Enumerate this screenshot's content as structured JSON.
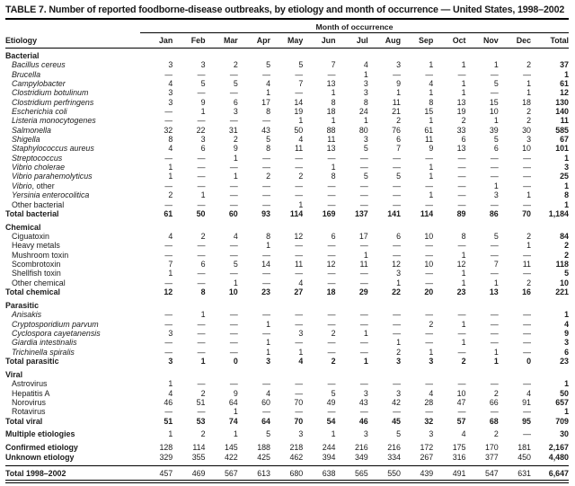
{
  "table": {
    "title": "TABLE 7. Number of reported foodborne-disease outbreaks, by etiology and month of occurrence — United States, 1998–2002",
    "spanner": "Month of occurrence",
    "label_header": "Etiology",
    "months": [
      "Jan",
      "Feb",
      "Mar",
      "Apr",
      "May",
      "Jun",
      "Jul",
      "Aug",
      "Sep",
      "Oct",
      "Nov",
      "Dec"
    ],
    "total_header": "Total",
    "rows": [
      {
        "type": "section",
        "label": "Bacterial"
      },
      {
        "type": "data",
        "label": "Bacillus cereus",
        "italic": true,
        "values": [
          "3",
          "3",
          "2",
          "5",
          "5",
          "7",
          "4",
          "3",
          "1",
          "1",
          "1",
          "2",
          "37"
        ]
      },
      {
        "type": "data",
        "label": "Brucella",
        "italic": true,
        "values": [
          "—",
          "—",
          "—",
          "—",
          "—",
          "—",
          "1",
          "—",
          "—",
          "—",
          "—",
          "—",
          "1"
        ]
      },
      {
        "type": "data",
        "label": "Campylobacter",
        "italic": true,
        "values": [
          "4",
          "5",
          "5",
          "4",
          "7",
          "13",
          "3",
          "9",
          "4",
          "1",
          "5",
          "1",
          "61"
        ]
      },
      {
        "type": "data",
        "label": "Clostridium botulinum",
        "italic": true,
        "values": [
          "3",
          "—",
          "—",
          "1",
          "—",
          "1",
          "3",
          "1",
          "1",
          "1",
          "—",
          "1",
          "12"
        ]
      },
      {
        "type": "data",
        "label": "Clostridium perfringens",
        "italic": true,
        "values": [
          "3",
          "9",
          "6",
          "17",
          "14",
          "8",
          "8",
          "11",
          "8",
          "13",
          "15",
          "18",
          "130"
        ]
      },
      {
        "type": "data",
        "label": "Escherichia coli",
        "italic": true,
        "values": [
          "—",
          "1",
          "3",
          "8",
          "19",
          "18",
          "24",
          "21",
          "15",
          "19",
          "10",
          "2",
          "140"
        ]
      },
      {
        "type": "data",
        "label": "Listeria monocytogenes",
        "italic": true,
        "values": [
          "—",
          "—",
          "—",
          "—",
          "1",
          "1",
          "1",
          "2",
          "1",
          "2",
          "1",
          "2",
          "11"
        ]
      },
      {
        "type": "data",
        "label": "Salmonella",
        "italic": true,
        "values": [
          "32",
          "22",
          "31",
          "43",
          "50",
          "88",
          "80",
          "76",
          "61",
          "33",
          "39",
          "30",
          "585"
        ]
      },
      {
        "type": "data",
        "label": "Shigella",
        "italic": true,
        "values": [
          "8",
          "3",
          "2",
          "5",
          "4",
          "11",
          "3",
          "6",
          "11",
          "6",
          "5",
          "3",
          "67"
        ]
      },
      {
        "type": "data",
        "label": "Staphylococcus aureus",
        "italic": true,
        "values": [
          "4",
          "6",
          "9",
          "8",
          "11",
          "13",
          "5",
          "7",
          "9",
          "13",
          "6",
          "10",
          "101"
        ]
      },
      {
        "type": "data",
        "label": "Streptococcus",
        "italic": true,
        "values": [
          "—",
          "—",
          "1",
          "—",
          "—",
          "—",
          "—",
          "—",
          "—",
          "—",
          "—",
          "—",
          "1"
        ]
      },
      {
        "type": "data",
        "label": "Vibrio cholerae",
        "italic": true,
        "values": [
          "1",
          "—",
          "—",
          "—",
          "—",
          "1",
          "—",
          "—",
          "1",
          "—",
          "—",
          "—",
          "3"
        ]
      },
      {
        "type": "data",
        "label": "Vibrio parahemolyticus",
        "italic": true,
        "values": [
          "1",
          "—",
          "1",
          "2",
          "2",
          "8",
          "5",
          "5",
          "1",
          "—",
          "—",
          "—",
          "25"
        ]
      },
      {
        "type": "data",
        "label": "Vibrio, other",
        "italic_part": "Vibrio",
        "values": [
          "—",
          "—",
          "—",
          "—",
          "—",
          "—",
          "—",
          "—",
          "—",
          "—",
          "1",
          "—",
          "1"
        ]
      },
      {
        "type": "data",
        "label": "Yersinia enterocolitica",
        "italic": true,
        "values": [
          "2",
          "1",
          "—",
          "—",
          "—",
          "—",
          "—",
          "—",
          "1",
          "—",
          "3",
          "1",
          "8"
        ]
      },
      {
        "type": "data",
        "label": "Other bacterial",
        "values": [
          "—",
          "—",
          "—",
          "—",
          "1",
          "—",
          "—",
          "—",
          "—",
          "—",
          "—",
          "—",
          "1"
        ]
      },
      {
        "type": "total",
        "label": "Total bacterial",
        "values": [
          "61",
          "50",
          "60",
          "93",
          "114",
          "169",
          "137",
          "141",
          "114",
          "89",
          "86",
          "70",
          "1,184"
        ]
      },
      {
        "type": "spacer"
      },
      {
        "type": "section",
        "label": "Chemical"
      },
      {
        "type": "data",
        "label": "Ciguatoxin",
        "values": [
          "4",
          "2",
          "4",
          "8",
          "12",
          "6",
          "17",
          "6",
          "10",
          "8",
          "5",
          "2",
          "84"
        ]
      },
      {
        "type": "data",
        "label": "Heavy metals",
        "values": [
          "—",
          "—",
          "—",
          "1",
          "—",
          "—",
          "—",
          "—",
          "—",
          "—",
          "—",
          "1",
          "2"
        ]
      },
      {
        "type": "data",
        "label": "Mushroom toxin",
        "values": [
          "—",
          "—",
          "—",
          "—",
          "—",
          "—",
          "1",
          "—",
          "—",
          "1",
          "—",
          "—",
          "2"
        ]
      },
      {
        "type": "data",
        "label": "Scombrotoxin",
        "values": [
          "7",
          "6",
          "5",
          "14",
          "11",
          "12",
          "11",
          "12",
          "10",
          "12",
          "7",
          "11",
          "118"
        ]
      },
      {
        "type": "data",
        "label": "Shellfish toxin",
        "values": [
          "1",
          "—",
          "—",
          "—",
          "—",
          "—",
          "—",
          "3",
          "—",
          "1",
          "—",
          "—",
          "5"
        ]
      },
      {
        "type": "data",
        "label": "Other chemical",
        "values": [
          "—",
          "—",
          "1",
          "—",
          "4",
          "—",
          "—",
          "1",
          "—",
          "1",
          "1",
          "2",
          "10"
        ]
      },
      {
        "type": "total",
        "label": "Total chemical",
        "values": [
          "12",
          "8",
          "10",
          "23",
          "27",
          "18",
          "29",
          "22",
          "20",
          "23",
          "13",
          "16",
          "221"
        ]
      },
      {
        "type": "spacer"
      },
      {
        "type": "section",
        "label": "Parasitic"
      },
      {
        "type": "data",
        "label": "Anisakis",
        "italic": true,
        "values": [
          "—",
          "1",
          "—",
          "—",
          "—",
          "—",
          "—",
          "—",
          "—",
          "—",
          "—",
          "—",
          "1"
        ]
      },
      {
        "type": "data",
        "label": "Cryptosporidium parvum",
        "italic": true,
        "values": [
          "—",
          "—",
          "—",
          "1",
          "—",
          "—",
          "—",
          "—",
          "2",
          "1",
          "—",
          "—",
          "4"
        ]
      },
      {
        "type": "data",
        "label": "Cyclospora cayetanensis",
        "italic": true,
        "values": [
          "3",
          "—",
          "—",
          "—",
          "3",
          "2",
          "1",
          "—",
          "—",
          "—",
          "—",
          "—",
          "9"
        ]
      },
      {
        "type": "data",
        "label": "Giardia intestinalis",
        "italic": true,
        "values": [
          "—",
          "—",
          "—",
          "1",
          "—",
          "—",
          "—",
          "1",
          "—",
          "1",
          "—",
          "—",
          "3"
        ]
      },
      {
        "type": "data",
        "label": "Trichinella spiralis",
        "italic": true,
        "values": [
          "—",
          "—",
          "—",
          "1",
          "1",
          "—",
          "—",
          "2",
          "1",
          "—",
          "1",
          "—",
          "6"
        ]
      },
      {
        "type": "total",
        "label": "Total parasitic",
        "values": [
          "3",
          "1",
          "0",
          "3",
          "4",
          "2",
          "1",
          "3",
          "3",
          "2",
          "1",
          "0",
          "23"
        ]
      },
      {
        "type": "spacer"
      },
      {
        "type": "section",
        "label": "Viral"
      },
      {
        "type": "data",
        "label": "Astrovirus",
        "values": [
          "1",
          "—",
          "—",
          "—",
          "—",
          "—",
          "—",
          "—",
          "—",
          "—",
          "—",
          "—",
          "1"
        ]
      },
      {
        "type": "data",
        "label": "Hepatitis A",
        "values": [
          "4",
          "2",
          "9",
          "4",
          "—",
          "5",
          "3",
          "3",
          "4",
          "10",
          "2",
          "4",
          "50"
        ]
      },
      {
        "type": "data",
        "label": "Norovirus",
        "values": [
          "46",
          "51",
          "64",
          "60",
          "70",
          "49",
          "43",
          "42",
          "28",
          "47",
          "66",
          "91",
          "657"
        ]
      },
      {
        "type": "data",
        "label": "Rotavirus",
        "values": [
          "—",
          "—",
          "1",
          "—",
          "—",
          "—",
          "—",
          "—",
          "—",
          "—",
          "—",
          "—",
          "1"
        ]
      },
      {
        "type": "total",
        "label": "Total viral",
        "values": [
          "51",
          "53",
          "74",
          "64",
          "70",
          "54",
          "46",
          "45",
          "32",
          "57",
          "68",
          "95",
          "709"
        ]
      },
      {
        "type": "spacer"
      },
      {
        "type": "summary",
        "label": "Multiple etiologies",
        "values": [
          "1",
          "2",
          "1",
          "5",
          "3",
          "1",
          "3",
          "5",
          "3",
          "4",
          "2",
          "—",
          "30"
        ]
      },
      {
        "type": "spacer"
      },
      {
        "type": "summary",
        "label": "Confirmed etiology",
        "values": [
          "128",
          "114",
          "145",
          "188",
          "218",
          "244",
          "216",
          "216",
          "172",
          "175",
          "170",
          "181",
          "2,167"
        ]
      },
      {
        "type": "summary",
        "label": "Unknown etiology",
        "values": [
          "329",
          "355",
          "422",
          "425",
          "462",
          "394",
          "349",
          "334",
          "267",
          "316",
          "377",
          "450",
          "4,480"
        ]
      },
      {
        "type": "spacer"
      },
      {
        "type": "grand",
        "label": "Total 1998–2002",
        "values": [
          "457",
          "469",
          "567",
          "613",
          "680",
          "638",
          "565",
          "550",
          "439",
          "491",
          "547",
          "631",
          "6,647"
        ]
      }
    ]
  }
}
